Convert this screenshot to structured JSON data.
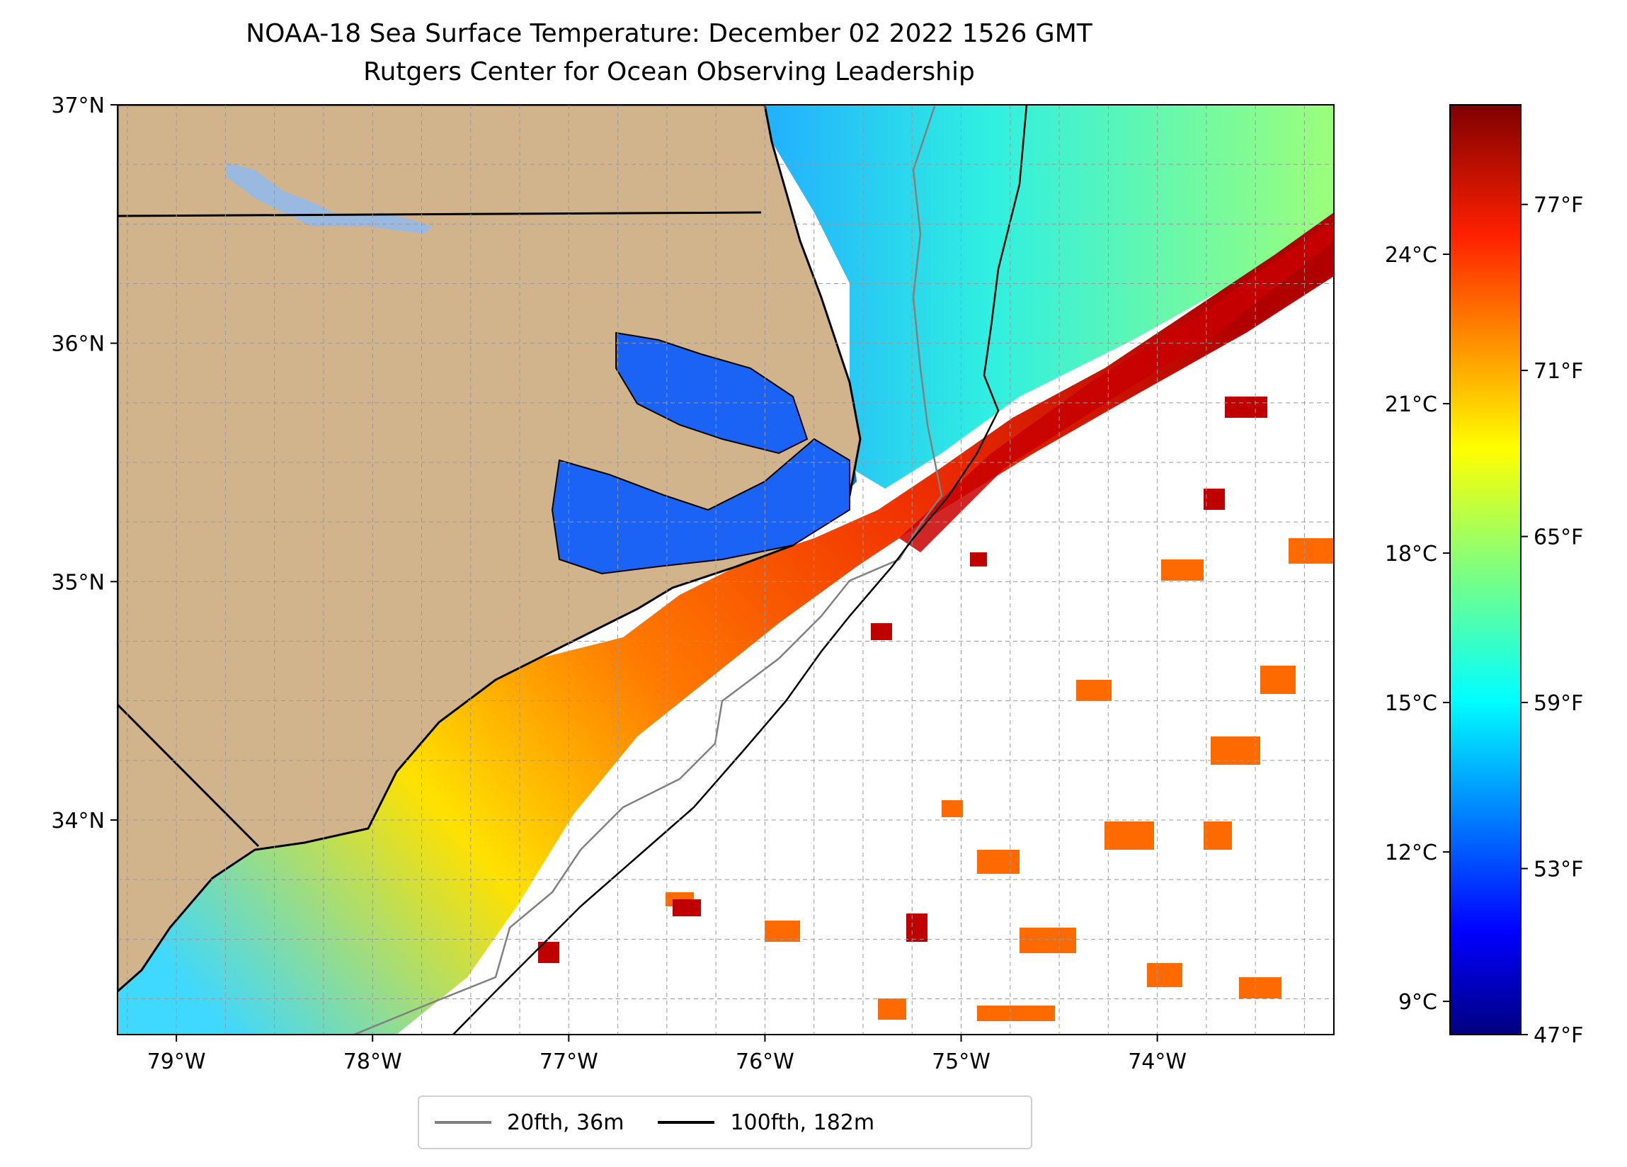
{
  "title": "NOAA-18 Sea Surface Temperature: December 02 2022 1526 GMT",
  "subtitle": "Rutgers Center for Ocean Observing Leadership",
  "map": {
    "lon_range": [
      -79.3,
      -73.1
    ],
    "lat_range": [
      33.1,
      37.0
    ],
    "lon_ticks": [
      {
        "value": -79,
        "label": "79°W"
      },
      {
        "value": -78,
        "label": "78°W"
      },
      {
        "value": -77,
        "label": "77°W"
      },
      {
        "value": -76,
        "label": "76°W"
      },
      {
        "value": -75,
        "label": "75°W"
      },
      {
        "value": -74,
        "label": "74°W"
      }
    ],
    "lat_ticks": [
      {
        "value": 37,
        "label": "37°N"
      },
      {
        "value": 36,
        "label": "36°N"
      },
      {
        "value": 35,
        "label": "35°N"
      },
      {
        "value": 34,
        "label": "34°N"
      }
    ],
    "gridlines": "dashed",
    "colors": {
      "land": "#d2b48c",
      "coastline": "#000000",
      "lake": "#9ab9e0",
      "contour_20fth": "#808080",
      "contour_100fth": "#000000",
      "no_data": "#ffffff"
    }
  },
  "colorbar": {
    "colormap": "jet",
    "celsius_ticks": [
      {
        "value": 24,
        "label": "24°C"
      },
      {
        "value": 21,
        "label": "21°C"
      },
      {
        "value": 18,
        "label": "18°C"
      },
      {
        "value": 15,
        "label": "15°C"
      },
      {
        "value": 12,
        "label": "12°C"
      },
      {
        "value": 9,
        "label": "9°C"
      }
    ],
    "fahrenheit_ticks": [
      {
        "value": 77,
        "label": "77°F"
      },
      {
        "value": 71,
        "label": "71°F"
      },
      {
        "value": 65,
        "label": "65°F"
      },
      {
        "value": 59,
        "label": "59°F"
      },
      {
        "value": 53,
        "label": "53°F"
      },
      {
        "value": 47,
        "label": "47°F"
      }
    ],
    "range_f": [
      47,
      80.6
    ]
  },
  "legend": {
    "items": [
      {
        "label": "20fth, 36m",
        "color": "#808080"
      },
      {
        "label": "100fth, 182m",
        "color": "#000000"
      }
    ]
  }
}
